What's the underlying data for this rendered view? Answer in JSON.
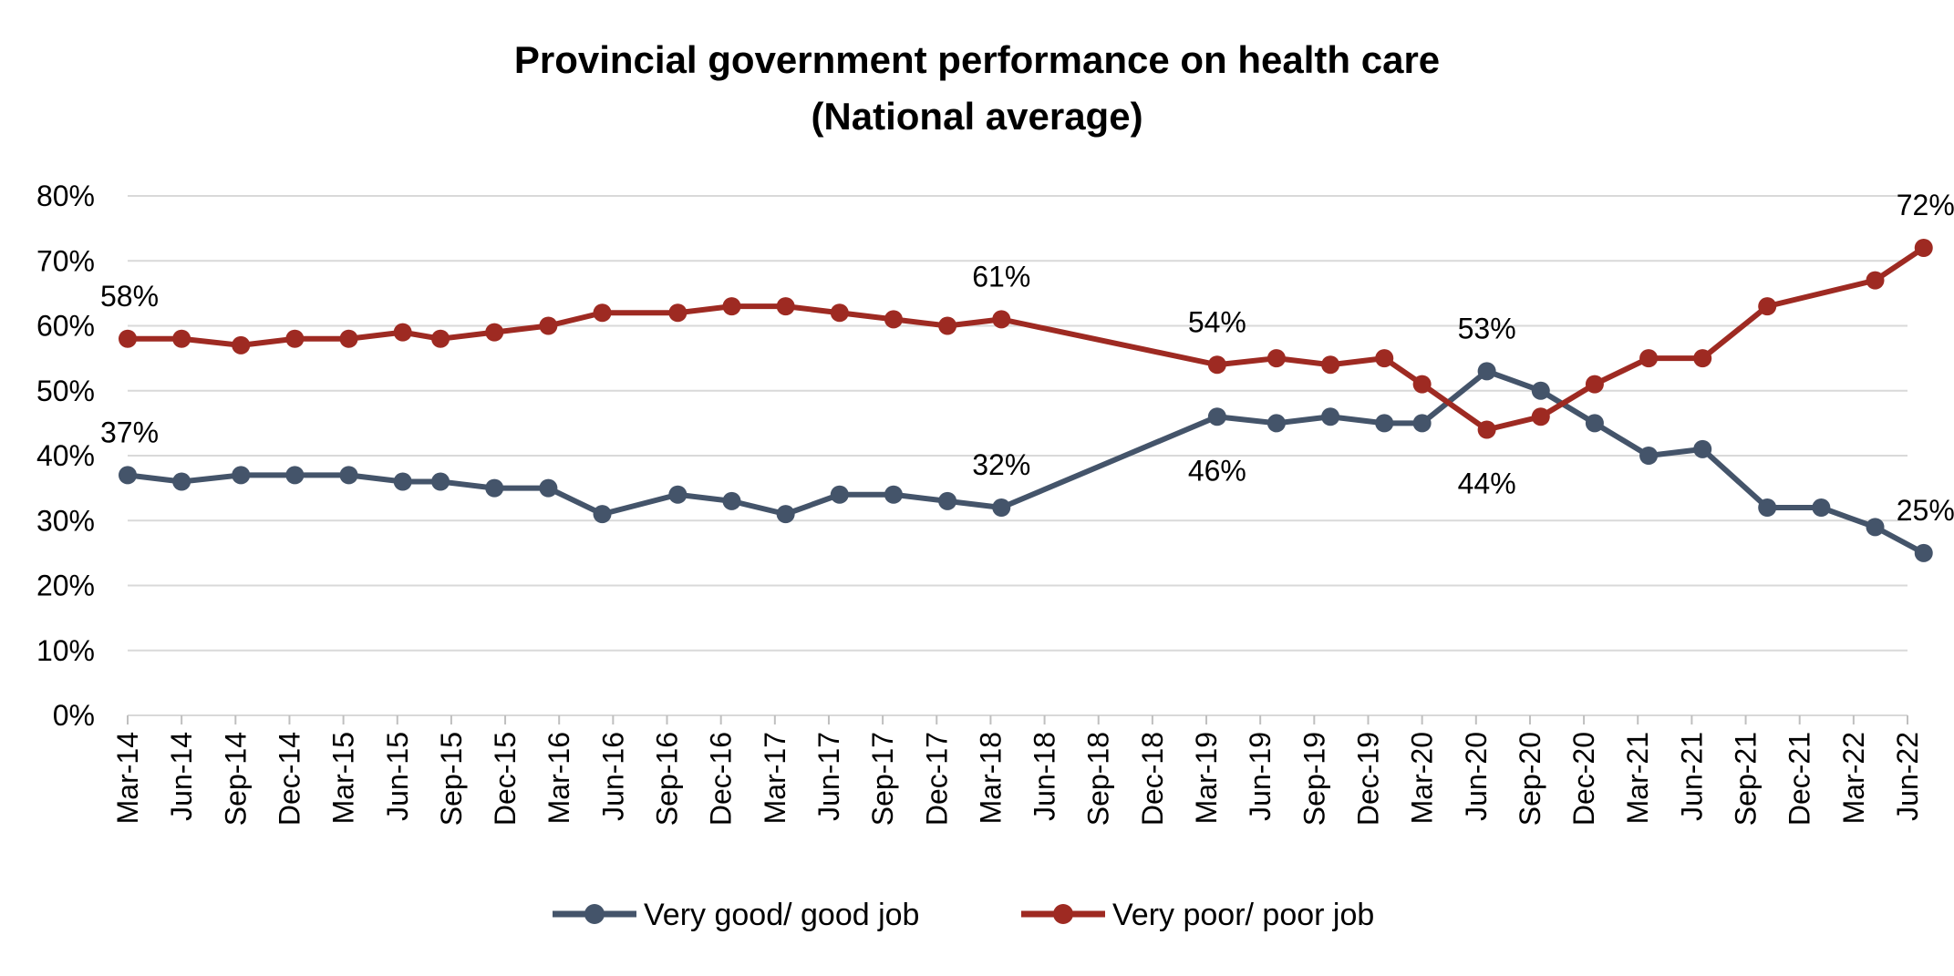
{
  "chart_data": {
    "type": "line",
    "title": [
      "Provincial government performance on health care",
      "(National average)"
    ],
    "xlabel": "",
    "ylabel": "",
    "ylim": [
      0,
      80
    ],
    "yticks": [
      "0%",
      "10%",
      "20%",
      "30%",
      "40%",
      "50%",
      "60%",
      "70%",
      "80%"
    ],
    "categories": [
      "Mar-14",
      "Jun-14",
      "Sep-14",
      "Dec-14",
      "Mar-15",
      "Jun-15",
      "Sep-15",
      "Dec-15",
      "Mar-16",
      "Jun-16",
      "Sep-16",
      "Dec-16",
      "Mar-17",
      "Jun-17",
      "Sep-17",
      "Dec-17",
      "Mar-18",
      "Jun-18",
      "Sep-18",
      "Dec-18",
      "Mar-19",
      "Jun-19",
      "Sep-19",
      "Dec-19",
      "Mar-20",
      "Jun-20",
      "Sep-20",
      "Dec-20",
      "Mar-21",
      "Jun-21",
      "Sep-21",
      "Dec-21",
      "Mar-22",
      "Jun-22"
    ],
    "grid": true,
    "legend_position": "bottom",
    "series": [
      {
        "name": "Very good/ good job",
        "color": "#44546a",
        "points": [
          {
            "x": 0,
            "y": 37
          },
          {
            "x": 1,
            "y": 36
          },
          {
            "x": 2.1,
            "y": 37
          },
          {
            "x": 3.1,
            "y": 37
          },
          {
            "x": 4.1,
            "y": 37
          },
          {
            "x": 5.1,
            "y": 36
          },
          {
            "x": 5.8,
            "y": 36
          },
          {
            "x": 6.8,
            "y": 35
          },
          {
            "x": 7.8,
            "y": 35
          },
          {
            "x": 8.8,
            "y": 31
          },
          {
            "x": 10.2,
            "y": 34
          },
          {
            "x": 11.2,
            "y": 33
          },
          {
            "x": 12.2,
            "y": 31
          },
          {
            "x": 13.2,
            "y": 34
          },
          {
            "x": 14.2,
            "y": 34
          },
          {
            "x": 15.2,
            "y": 33
          },
          {
            "x": 16.2,
            "y": 32
          },
          {
            "x": 20.2,
            "y": 46
          },
          {
            "x": 21.3,
            "y": 45
          },
          {
            "x": 22.3,
            "y": 46
          },
          {
            "x": 23.3,
            "y": 45
          },
          {
            "x": 24,
            "y": 45
          },
          {
            "x": 25.2,
            "y": 53
          },
          {
            "x": 26.2,
            "y": 50
          },
          {
            "x": 27.2,
            "y": 45
          },
          {
            "x": 28.2,
            "y": 40
          },
          {
            "x": 29.2,
            "y": 41
          },
          {
            "x": 30.4,
            "y": 32
          },
          {
            "x": 31.4,
            "y": 32
          },
          {
            "x": 32.4,
            "y": 29
          },
          {
            "x": 33.3,
            "y": 25
          }
        ],
        "labels": [
          {
            "x": 0,
            "y": 37,
            "text": "37%"
          },
          {
            "x": 16.2,
            "y": 32,
            "text": "32%"
          },
          {
            "x": 20.2,
            "y": 46,
            "text": "46%"
          },
          {
            "x": 25.2,
            "y": 53,
            "text": "53%"
          },
          {
            "x": 33.3,
            "y": 25,
            "text": "25%"
          }
        ]
      },
      {
        "name": "Very poor/ poor job",
        "color": "#9e2a22",
        "points": [
          {
            "x": 0,
            "y": 58
          },
          {
            "x": 1,
            "y": 58
          },
          {
            "x": 2.1,
            "y": 57
          },
          {
            "x": 3.1,
            "y": 58
          },
          {
            "x": 4.1,
            "y": 58
          },
          {
            "x": 5.1,
            "y": 59
          },
          {
            "x": 5.8,
            "y": 58
          },
          {
            "x": 6.8,
            "y": 59
          },
          {
            "x": 7.8,
            "y": 60
          },
          {
            "x": 8.8,
            "y": 62
          },
          {
            "x": 10.2,
            "y": 62
          },
          {
            "x": 11.2,
            "y": 63
          },
          {
            "x": 12.2,
            "y": 63
          },
          {
            "x": 13.2,
            "y": 62
          },
          {
            "x": 14.2,
            "y": 61
          },
          {
            "x": 15.2,
            "y": 60
          },
          {
            "x": 16.2,
            "y": 61
          },
          {
            "x": 20.2,
            "y": 54
          },
          {
            "x": 21.3,
            "y": 55
          },
          {
            "x": 22.3,
            "y": 54
          },
          {
            "x": 23.3,
            "y": 55
          },
          {
            "x": 24,
            "y": 51
          },
          {
            "x": 25.2,
            "y": 44
          },
          {
            "x": 26.2,
            "y": 46
          },
          {
            "x": 27.2,
            "y": 51
          },
          {
            "x": 28.2,
            "y": 55
          },
          {
            "x": 29.2,
            "y": 55
          },
          {
            "x": 30.4,
            "y": 63
          },
          {
            "x": 32.4,
            "y": 67
          },
          {
            "x": 33.3,
            "y": 72
          }
        ],
        "labels": [
          {
            "x": 0,
            "y": 58,
            "text": "58%"
          },
          {
            "x": 16.2,
            "y": 61,
            "text": "61%"
          },
          {
            "x": 20.2,
            "y": 54,
            "text": "54%"
          },
          {
            "x": 25.2,
            "y": 44,
            "text": "44%"
          },
          {
            "x": 33.3,
            "y": 72,
            "text": "72%"
          }
        ]
      }
    ]
  }
}
